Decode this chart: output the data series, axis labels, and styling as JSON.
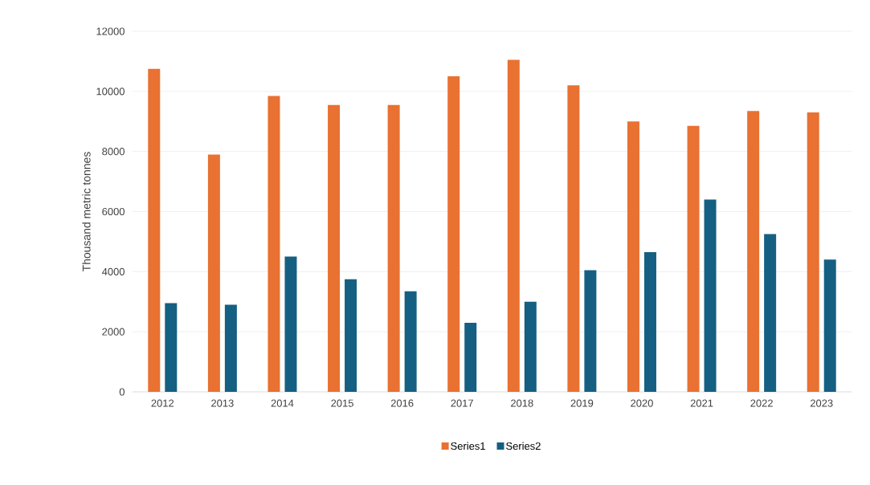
{
  "chart_data": {
    "type": "bar",
    "ylabel": "Thousand metric tonnes",
    "categories": [
      "2012",
      "2013",
      "2014",
      "2015",
      "2016",
      "2017",
      "2018",
      "2019",
      "2020",
      "2021",
      "2022",
      "2023"
    ],
    "series": [
      {
        "name": "Series1",
        "color": "#e97132",
        "values": [
          10750,
          7900,
          9850,
          9550,
          9550,
          10500,
          11050,
          10200,
          9000,
          8850,
          9350,
          9300
        ]
      },
      {
        "name": "Series2",
        "color": "#156082",
        "values": [
          2950,
          2900,
          4500,
          3750,
          3350,
          2300,
          3000,
          4050,
          4650,
          6400,
          5250,
          4400
        ]
      }
    ],
    "ylim": [
      0,
      12000
    ],
    "yticks": [
      0,
      2000,
      4000,
      6000,
      8000,
      10000,
      12000
    ],
    "grid": "y",
    "legend": "bottom"
  }
}
